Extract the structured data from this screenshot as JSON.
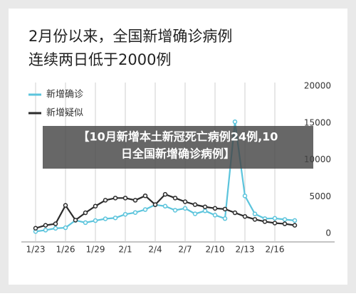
{
  "chart_data": {
    "type": "line",
    "title": [
      "2月份以来，全国新增确诊病例",
      "连续两日低于2000例"
    ],
    "annotations": [
      "【10月新增本土新冠死亡病例24例,10",
      "日全国新增确诊病例】"
    ],
    "categories": [
      "1/23",
      null,
      null,
      "1/26",
      null,
      null,
      "1/29",
      null,
      null,
      "2/1",
      null,
      null,
      "2/4",
      null,
      null,
      "2/7",
      null,
      null,
      "2/10",
      null,
      null,
      "2/13",
      null,
      null,
      "2/16",
      null,
      null
    ],
    "series": [
      {
        "name": "新增确诊",
        "color": "#5bc4dc",
        "values": [
          259,
          444,
          688,
          769,
          1771,
          1459,
          1737,
          1982,
          2102,
          2590,
          2829,
          3235,
          3887,
          3694,
          3143,
          3399,
          2656,
          3062,
          2478,
          2015,
          15152,
          5090,
          2641,
          2009,
          2048,
          1886,
          1749
        ]
      },
      {
        "name": "新增疑似",
        "color": "#2b2b2b",
        "values": [
          700,
          1100,
          1300,
          3800,
          1800,
          2800,
          3700,
          4500,
          4800,
          4800,
          4500,
          5100,
          3900,
          5300,
          4800,
          4300,
          3900,
          3600,
          3400,
          3300,
          2800,
          2300,
          1900,
          1600,
          1400,
          1300,
          1100
        ]
      }
    ],
    "ylim": [
      0,
      20000
    ],
    "yticks": [
      0,
      5000,
      10000,
      15000,
      20000
    ],
    "grid": "x",
    "legend": "top-left"
  }
}
